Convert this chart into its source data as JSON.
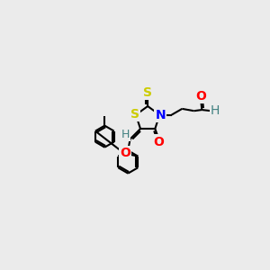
{
  "background_color": "#ebebeb",
  "atom_colors": {
    "S": "#cccc00",
    "N": "#0000ff",
    "O": "#ff0000",
    "H": "#408080",
    "C": "#000000"
  },
  "bond_color": "#000000",
  "bond_width": 1.5,
  "font_size_atom": 10,
  "font_size_H": 9
}
